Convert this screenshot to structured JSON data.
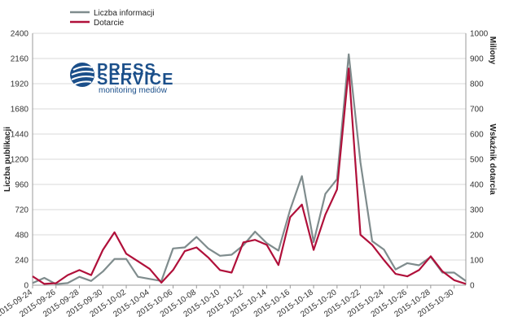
{
  "colors": {
    "series_gray": "#7f8c8d",
    "series_red": "#b0103a",
    "grid": "#d9d9d9",
    "logo_blue": "#1b4f8a"
  },
  "logo": {
    "icon": "globe-stripes-icon",
    "line1": "PRESS",
    "line2": "SERVICE",
    "tagline": "monitoring mediów"
  },
  "chart_data": {
    "type": "line",
    "grid": true,
    "legend_position": "top-left",
    "xlabel": "",
    "ylabel_left": "Liczba publikacji",
    "ylabel_right": "Wskaźnik dotarcia",
    "right_axis_unit": "Miliony",
    "ylim_left": [
      0,
      2400
    ],
    "ylim_right": [
      0,
      1000
    ],
    "yticks_left": [
      "0",
      "240",
      "480",
      "720",
      "960",
      "1200",
      "1440",
      "1680",
      "1920",
      "2160",
      "2400"
    ],
    "yticks_right": [
      "0",
      "100",
      "200",
      "300",
      "400",
      "500",
      "600",
      "700",
      "800",
      "900",
      "1000"
    ],
    "x": [
      "2015-09-24",
      "2015-09-25",
      "2015-09-26",
      "2015-09-27",
      "2015-09-28",
      "2015-09-29",
      "2015-09-30",
      "2015-10-01",
      "2015-10-02",
      "2015-10-03",
      "2015-10-04",
      "2015-10-05",
      "2015-10-06",
      "2015-10-07",
      "2015-10-08",
      "2015-10-09",
      "2015-10-10",
      "2015-10-11",
      "2015-10-12",
      "2015-10-13",
      "2015-10-14",
      "2015-10-15",
      "2015-10-16",
      "2015-10-17",
      "2015-10-18",
      "2015-10-19",
      "2015-10-20",
      "2015-10-21",
      "2015-10-22",
      "2015-10-23",
      "2015-10-24",
      "2015-10-25",
      "2015-10-26",
      "2015-10-27",
      "2015-10-28",
      "2015-10-29",
      "2015-10-30",
      "2015-10-31"
    ],
    "xtick_labels": [
      "2015-09-24",
      "2015-09-26",
      "2015-09-28",
      "2015-09-30",
      "2015-10-02",
      "2015-10-04",
      "2015-10-06",
      "2015-10-08",
      "2015-10-10",
      "2015-10-12",
      "2015-10-14",
      "2015-10-16",
      "2015-10-18",
      "2015-10-20",
      "2015-10-22",
      "2015-10-24",
      "2015-10-26",
      "2015-10-28",
      "2015-10-30"
    ],
    "series": [
      {
        "name": "Liczba informacji",
        "axis": "left",
        "color": "#7f8c8d",
        "values": [
          20,
          70,
          10,
          20,
          80,
          40,
          130,
          250,
          250,
          80,
          60,
          40,
          350,
          360,
          460,
          350,
          280,
          290,
          380,
          510,
          400,
          330,
          720,
          1040,
          410,
          870,
          1010,
          2200,
          1170,
          420,
          340,
          150,
          210,
          190,
          270,
          120,
          120,
          40
        ]
      },
      {
        "name": "Dotarcie",
        "axis": "right",
        "color": "#b0103a",
        "values": [
          35,
          5,
          8,
          40,
          60,
          40,
          140,
          210,
          125,
          95,
          65,
          10,
          60,
          135,
          150,
          110,
          60,
          50,
          170,
          180,
          160,
          80,
          270,
          320,
          140,
          280,
          380,
          860,
          200,
          160,
          100,
          45,
          35,
          60,
          115,
          55,
          20,
          5
        ]
      }
    ]
  }
}
